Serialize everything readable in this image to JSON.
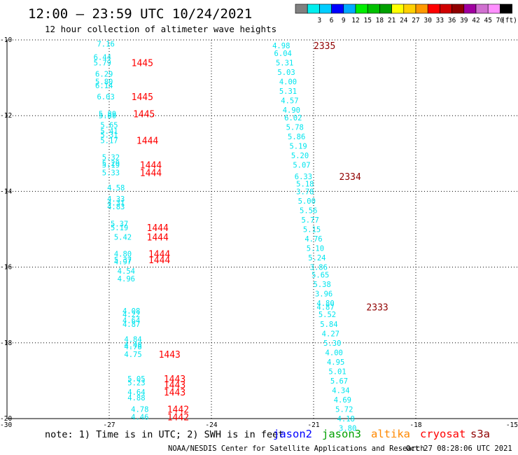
{
  "title": "12:00 – 23:59 UTC 10/24/2021",
  "subtitle": "12 hour collection of altimeter wave heights",
  "footer_note": "note: 1) Time is in UTC; 2) SWH is in feet",
  "credit": "NOAA/NESDIS Center for Satellite Applications and Research",
  "generated": "Oct 27 08:28:06 UTC 2021",
  "legend_scale": {
    "unit": "(ft)",
    "bins": [
      {
        "label": "",
        "color": "#808080"
      },
      {
        "label": "3",
        "color": "#00eeee"
      },
      {
        "label": "6",
        "color": "#00cdff"
      },
      {
        "label": "9",
        "color": "#0000ff"
      },
      {
        "label": "12",
        "color": "#00aaff"
      },
      {
        "label": "15",
        "color": "#00ee00"
      },
      {
        "label": "18",
        "color": "#00c000"
      },
      {
        "label": "21",
        "color": "#00a000"
      },
      {
        "label": "24",
        "color": "#ffff00"
      },
      {
        "label": "27",
        "color": "#ffd000"
      },
      {
        "label": "30",
        "color": "#ff9900"
      },
      {
        "label": "33",
        "color": "#ff0000"
      },
      {
        "label": "36",
        "color": "#d00000"
      },
      {
        "label": "39",
        "color": "#900000"
      },
      {
        "label": "42",
        "color": "#a000a0"
      },
      {
        "label": "45",
        "color": "#d070d0"
      },
      {
        "label": "70",
        "color": "#ff90ff"
      },
      {
        "label": "",
        "color": "#000000"
      }
    ]
  },
  "satellites": [
    {
      "name": "jason2",
      "color": "#0000ff"
    },
    {
      "name": "jason3",
      "color": "#00a000"
    },
    {
      "name": "altika",
      "color": "#ff8800"
    },
    {
      "name": "cryosat",
      "color": "#ff0000"
    },
    {
      "name": "s3a",
      "color": "#900000"
    }
  ],
  "chart_data": {
    "type": "scatter",
    "x_axis": {
      "range": [
        -30,
        -15
      ],
      "ticks": [
        "-30",
        "-27",
        "-24",
        "-21",
        "-18",
        "-15"
      ]
    },
    "y_axis": {
      "range": [
        -20,
        -10
      ],
      "ticks": [
        "-10",
        "-12",
        "-14",
        "-16",
        "-18",
        "-20"
      ]
    },
    "grid": true,
    "measurement_color": "#00e5ee",
    "series": [
      {
        "name": "cryosat",
        "color": "#ff0000",
        "wave_heights": [
          {
            "x": -27.1,
            "y": -10.1,
            "v": "7.16"
          },
          {
            "x": -27.2,
            "y": -10.45,
            "v": "6.44"
          },
          {
            "x": -27.2,
            "y": -10.6,
            "v": "5.79"
          },
          {
            "x": -27.15,
            "y": -10.9,
            "v": "6.29"
          },
          {
            "x": -27.15,
            "y": -11.1,
            "v": "5.80"
          },
          {
            "x": -27.15,
            "y": -11.2,
            "v": "6.14"
          },
          {
            "x": -27.1,
            "y": -11.5,
            "v": "6.03"
          },
          {
            "x": -27.05,
            "y": -11.95,
            "v": "5.89"
          },
          {
            "x": -27.05,
            "y": -12.0,
            "v": "5.80"
          },
          {
            "x": -27.0,
            "y": -12.25,
            "v": "5.65"
          },
          {
            "x": -27.0,
            "y": -12.4,
            "v": "5.41"
          },
          {
            "x": -27.0,
            "y": -12.5,
            "v": "5.31"
          },
          {
            "x": -27.0,
            "y": -12.65,
            "v": "5.17"
          },
          {
            "x": -26.95,
            "y": -13.1,
            "v": "5.32"
          },
          {
            "x": -26.95,
            "y": -13.25,
            "v": "5.29"
          },
          {
            "x": -26.95,
            "y": -13.3,
            "v": "5.19"
          },
          {
            "x": -26.95,
            "y": -13.5,
            "v": "5.33"
          },
          {
            "x": -26.8,
            "y": -13.9,
            "v": "4.58"
          },
          {
            "x": -26.8,
            "y": -14.2,
            "v": "4.33"
          },
          {
            "x": -26.8,
            "y": -14.3,
            "v": "4.31"
          },
          {
            "x": -26.8,
            "y": -14.4,
            "v": "4.83"
          },
          {
            "x": -26.7,
            "y": -14.85,
            "v": "5.37"
          },
          {
            "x": -26.7,
            "y": -14.95,
            "v": "5.19"
          },
          {
            "x": -26.6,
            "y": -15.2,
            "v": "5.42"
          },
          {
            "x": -26.6,
            "y": -15.65,
            "v": "4.80"
          },
          {
            "x": -26.6,
            "y": -15.8,
            "v": "5.37"
          },
          {
            "x": -26.6,
            "y": -15.85,
            "v": "4.97"
          },
          {
            "x": -26.5,
            "y": -16.1,
            "v": "4.54"
          },
          {
            "x": -26.5,
            "y": -16.3,
            "v": "4.96"
          },
          {
            "x": -26.35,
            "y": -17.15,
            "v": "4.08"
          },
          {
            "x": -26.35,
            "y": -17.25,
            "v": "4.22"
          },
          {
            "x": -26.35,
            "y": -17.4,
            "v": "4.64"
          },
          {
            "x": -26.35,
            "y": -17.5,
            "v": "4.87"
          },
          {
            "x": -26.3,
            "y": -17.9,
            "v": "4.84"
          },
          {
            "x": -26.3,
            "y": -18.05,
            "v": "4.48"
          },
          {
            "x": -26.3,
            "y": -18.1,
            "v": "4.78"
          },
          {
            "x": -26.3,
            "y": -18.3,
            "v": "4.75"
          },
          {
            "x": -26.2,
            "y": -18.95,
            "v": "5.05"
          },
          {
            "x": -26.2,
            "y": -19.05,
            "v": "5.23"
          },
          {
            "x": -26.2,
            "y": -19.3,
            "v": "4.64"
          },
          {
            "x": -26.2,
            "y": -19.45,
            "v": "4.88"
          },
          {
            "x": -26.1,
            "y": -19.75,
            "v": "4.78"
          },
          {
            "x": -26.1,
            "y": -19.95,
            "v": "4.46"
          }
        ],
        "time_labels": [
          {
            "x": -26.35,
            "y": -10.6,
            "v": "1445"
          },
          {
            "x": -26.35,
            "y": -11.5,
            "v": "1445"
          },
          {
            "x": -26.3,
            "y": -11.95,
            "v": "1445"
          },
          {
            "x": -26.2,
            "y": -12.65,
            "v": "1444"
          },
          {
            "x": -26.1,
            "y": -13.3,
            "v": "1444"
          },
          {
            "x": -26.1,
            "y": -13.5,
            "v": "1444"
          },
          {
            "x": -25.9,
            "y": -14.95,
            "v": "1444"
          },
          {
            "x": -25.9,
            "y": -15.2,
            "v": "1444"
          },
          {
            "x": -25.85,
            "y": -15.65,
            "v": "1444"
          },
          {
            "x": -25.85,
            "y": -15.8,
            "v": "1444"
          },
          {
            "x": -25.55,
            "y": -18.3,
            "v": "1443"
          },
          {
            "x": -25.4,
            "y": -18.95,
            "v": "1443"
          },
          {
            "x": -25.4,
            "y": -19.1,
            "v": "1443"
          },
          {
            "x": -25.4,
            "y": -19.3,
            "v": "1443"
          },
          {
            "x": -25.3,
            "y": -19.75,
            "v": "1442"
          },
          {
            "x": -25.3,
            "y": -19.95,
            "v": "1442"
          }
        ]
      },
      {
        "name": "s3a",
        "color": "#900000",
        "wave_heights": [
          {
            "x": -21.95,
            "y": -10.15,
            "v": "4.98"
          },
          {
            "x": -21.9,
            "y": -10.35,
            "v": "6.04"
          },
          {
            "x": -21.85,
            "y": -10.6,
            "v": "5.31"
          },
          {
            "x": -21.8,
            "y": -10.85,
            "v": "5.03"
          },
          {
            "x": -21.75,
            "y": -11.1,
            "v": "4.00"
          },
          {
            "x": -21.75,
            "y": -11.35,
            "v": "5.31"
          },
          {
            "x": -21.7,
            "y": -11.6,
            "v": "4.57"
          },
          {
            "x": -21.65,
            "y": -11.85,
            "v": "4.90"
          },
          {
            "x": -21.6,
            "y": -12.05,
            "v": "6.02"
          },
          {
            "x": -21.55,
            "y": -12.3,
            "v": "5.78"
          },
          {
            "x": -21.5,
            "y": -12.55,
            "v": "5.86"
          },
          {
            "x": -21.45,
            "y": -12.8,
            "v": "5.19"
          },
          {
            "x": -21.4,
            "y": -13.05,
            "v": "5.20"
          },
          {
            "x": -21.35,
            "y": -13.3,
            "v": "5.07"
          },
          {
            "x": -21.3,
            "y": -13.6,
            "v": "6.33"
          },
          {
            "x": -21.25,
            "y": -13.8,
            "v": "5.18"
          },
          {
            "x": -21.25,
            "y": -14.0,
            "v": "3.78"
          },
          {
            "x": -21.2,
            "y": -14.25,
            "v": "5.00"
          },
          {
            "x": -21.15,
            "y": -14.5,
            "v": "5.56"
          },
          {
            "x": -21.1,
            "y": -14.75,
            "v": "5.77"
          },
          {
            "x": -21.05,
            "y": -15.0,
            "v": "5.15"
          },
          {
            "x": -21.0,
            "y": -15.25,
            "v": "4.76"
          },
          {
            "x": -20.95,
            "y": -15.5,
            "v": "5.10"
          },
          {
            "x": -20.9,
            "y": -15.75,
            "v": "5.24"
          },
          {
            "x": -20.85,
            "y": -16.0,
            "v": "3.86"
          },
          {
            "x": -20.8,
            "y": -16.2,
            "v": "5.65"
          },
          {
            "x": -20.75,
            "y": -16.45,
            "v": "5.38"
          },
          {
            "x": -20.7,
            "y": -16.7,
            "v": "3.96"
          },
          {
            "x": -20.65,
            "y": -16.95,
            "v": "4.80"
          },
          {
            "x": -20.65,
            "y": -17.05,
            "v": "4.87"
          },
          {
            "x": -20.6,
            "y": -17.25,
            "v": "5.52"
          },
          {
            "x": -20.55,
            "y": -17.5,
            "v": "5.84"
          },
          {
            "x": -20.5,
            "y": -17.75,
            "v": "4.27"
          },
          {
            "x": -20.45,
            "y": -18.0,
            "v": "5.30"
          },
          {
            "x": -20.4,
            "y": -18.25,
            "v": "4.00"
          },
          {
            "x": -20.35,
            "y": -18.5,
            "v": "4.95"
          },
          {
            "x": -20.3,
            "y": -18.75,
            "v": "5.01"
          },
          {
            "x": -20.25,
            "y": -19.0,
            "v": "5.67"
          },
          {
            "x": -20.2,
            "y": -19.25,
            "v": "4.34"
          },
          {
            "x": -20.15,
            "y": -19.5,
            "v": "4.69"
          },
          {
            "x": -20.1,
            "y": -19.75,
            "v": "5.72"
          },
          {
            "x": -20.05,
            "y": -20.0,
            "v": "4.18"
          },
          {
            "x": -20.0,
            "y": -20.25,
            "v": "3.80"
          }
        ],
        "time_labels": [
          {
            "x": -21.0,
            "y": -10.15,
            "v": "2335"
          },
          {
            "x": -20.25,
            "y": -13.6,
            "v": "2334"
          },
          {
            "x": -19.45,
            "y": -17.05,
            "v": "2333"
          }
        ]
      }
    ]
  }
}
